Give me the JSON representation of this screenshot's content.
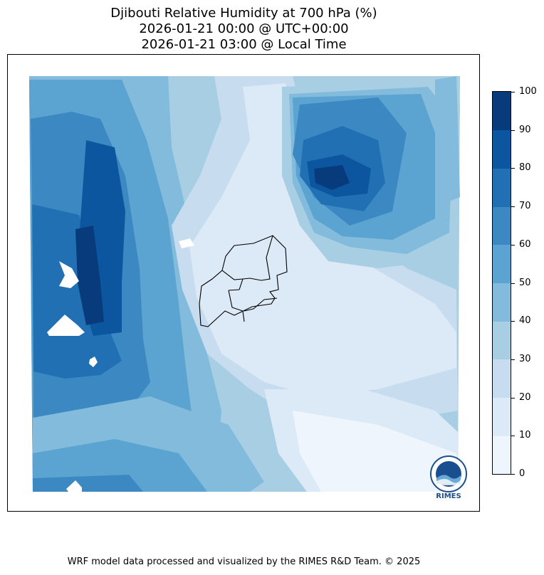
{
  "title": {
    "line1": "Djibouti Relative Humidity at 700 hPa (%)",
    "line2": "2026-01-21 00:00 @ UTC+00:00",
    "line3": "2026-01-21 03:00 @ Local Time"
  },
  "colorbar": {
    "ticks": [
      "0",
      "10",
      "20",
      "30",
      "40",
      "50",
      "60",
      "70",
      "80",
      "90",
      "100"
    ],
    "colors": [
      "#eff5fc",
      "#dce9f6",
      "#c7dcef",
      "#a8cee4",
      "#82bbdb",
      "#5ba3d0",
      "#3b88c2",
      "#2270b4",
      "#0c56a0",
      "#083b7c"
    ]
  },
  "logo": {
    "text": "RIMES"
  },
  "footer": "WRF model data processed and visualized by the RIMES R&D Team. © 2025"
}
